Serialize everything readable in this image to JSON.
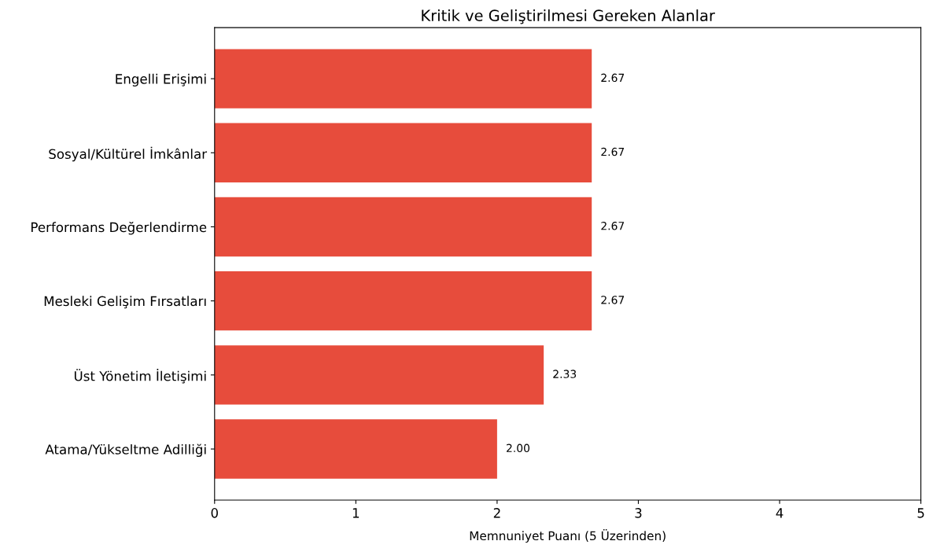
{
  "chart_data": {
    "type": "bar",
    "orientation": "horizontal",
    "title": "Kritik ve Geliştirilmesi Gereken Alanlar",
    "xlabel": "Memnuniyet Puanı (5 Üzerinden)",
    "categories": [
      "Engelli Erişimi",
      "Sosyal/Kültürel İmkânlar",
      "Performans Değerlendirme",
      "Mesleki Gelişim Fırsatları",
      "Üst Yönetim İletişimi",
      "Atama/Yükseltme Adilliği"
    ],
    "values": [
      2.67,
      2.67,
      2.67,
      2.67,
      2.33,
      2.0
    ],
    "value_labels": [
      "2.67",
      "2.67",
      "2.67",
      "2.67",
      "2.33",
      "2.00"
    ],
    "color": "#e74c3c",
    "xlim": [
      0,
      5
    ],
    "xticks": [
      0,
      1,
      2,
      3,
      4,
      5
    ],
    "grid": false
  }
}
